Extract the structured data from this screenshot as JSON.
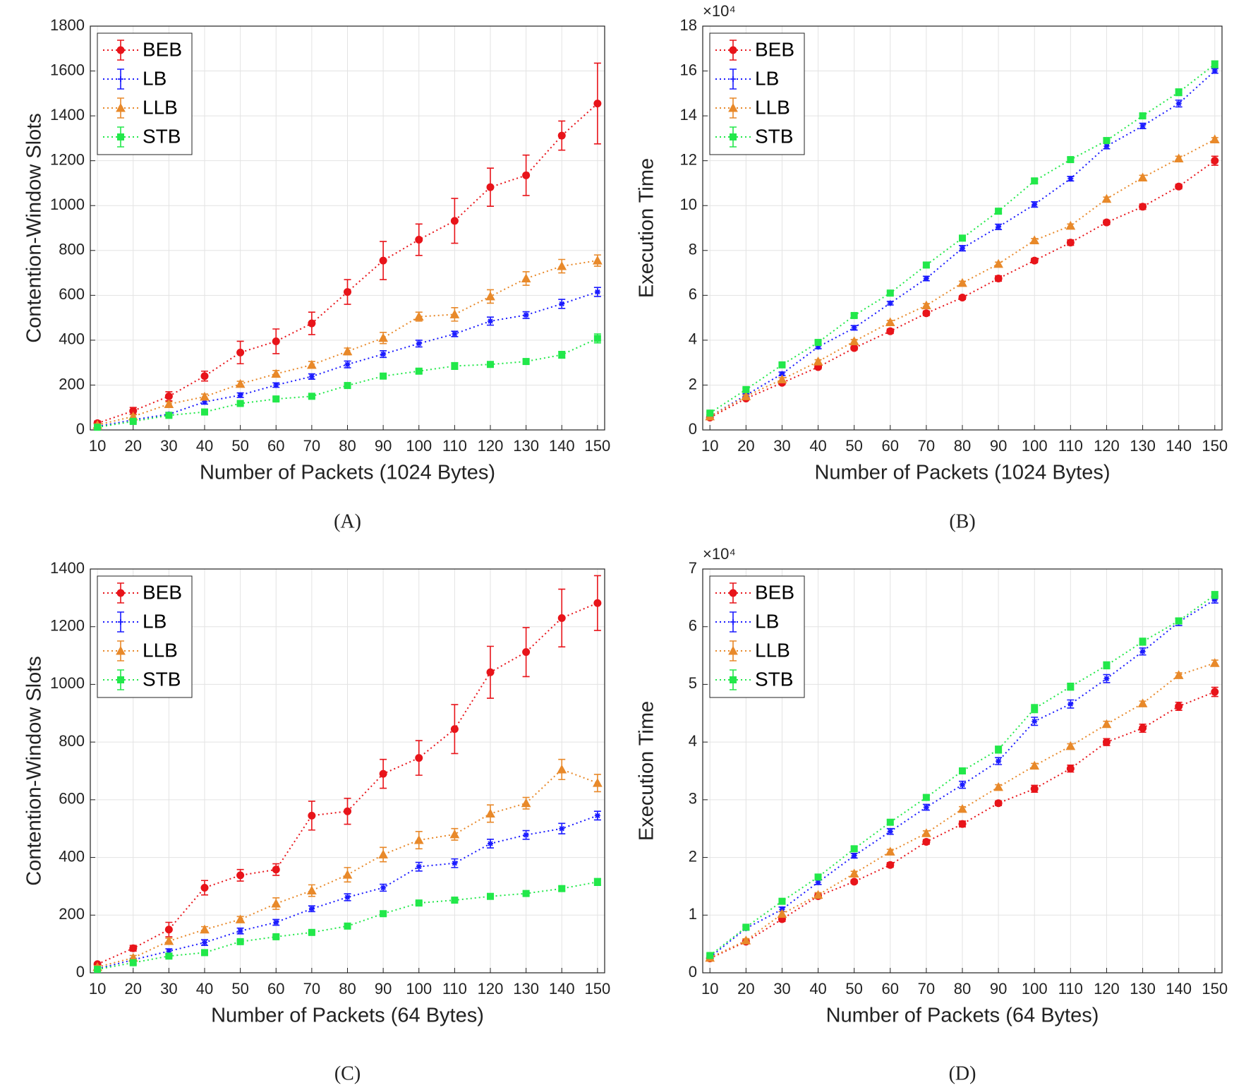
{
  "chart_data": [
    {
      "type": "line",
      "caption": "(A)",
      "xlabel": "Number of Packets (1024 Bytes)",
      "ylabel": "Contention-Window Slots",
      "x": [
        10,
        20,
        30,
        40,
        50,
        60,
        70,
        80,
        90,
        100,
        110,
        120,
        130,
        140,
        150
      ],
      "xlim": [
        8,
        152
      ],
      "xticks": [
        10,
        20,
        30,
        40,
        50,
        60,
        70,
        80,
        90,
        100,
        110,
        120,
        130,
        140,
        150
      ],
      "ylim": [
        0,
        1800
      ],
      "yticks": [
        0,
        200,
        400,
        600,
        800,
        1000,
        1200,
        1400,
        1600,
        1800
      ],
      "grid": true,
      "legend": "upper left",
      "series": [
        {
          "name": "BEB",
          "color": "#e8141a",
          "marker": "circle",
          "values": [
            30,
            85,
            150,
            240,
            345,
            395,
            475,
            615,
            755,
            848,
            932,
            1082,
            1135,
            1312,
            1455
          ],
          "errors": [
            10,
            15,
            20,
            22,
            50,
            55,
            50,
            55,
            85,
            70,
            100,
            85,
            90,
            65,
            180
          ]
        },
        {
          "name": "LB",
          "color": "#1a1aff",
          "marker": "star",
          "values": [
            15,
            45,
            70,
            125,
            155,
            200,
            238,
            292,
            338,
            385,
            428,
            485,
            512,
            562,
            615
          ],
          "errors": [
            5,
            5,
            8,
            10,
            10,
            10,
            12,
            15,
            15,
            15,
            12,
            18,
            15,
            20,
            20
          ]
        },
        {
          "name": "LLB",
          "color": "#e8892a",
          "marker": "triangle",
          "values": [
            22,
            60,
            115,
            148,
            205,
            250,
            290,
            350,
            410,
            505,
            515,
            595,
            675,
            730,
            755
          ],
          "errors": [
            5,
            8,
            10,
            12,
            12,
            15,
            15,
            15,
            25,
            20,
            30,
            30,
            30,
            30,
            25
          ]
        },
        {
          "name": "STB",
          "color": "#22e84a",
          "marker": "square",
          "values": [
            12,
            38,
            65,
            80,
            118,
            138,
            150,
            198,
            240,
            262,
            285,
            292,
            305,
            335,
            408
          ],
          "errors": [
            5,
            5,
            5,
            5,
            8,
            8,
            8,
            8,
            8,
            10,
            15,
            10,
            10,
            15,
            20
          ]
        }
      ]
    },
    {
      "type": "line",
      "caption": "(B)",
      "xlabel": "Number of Packets (1024 Bytes)",
      "ylabel": "Execution Time",
      "y_multiplier": "×10⁴",
      "x": [
        10,
        20,
        30,
        40,
        50,
        60,
        70,
        80,
        90,
        100,
        110,
        120,
        130,
        140,
        150
      ],
      "xlim": [
        8,
        152
      ],
      "xticks": [
        10,
        20,
        30,
        40,
        50,
        60,
        70,
        80,
        90,
        100,
        110,
        120,
        130,
        140,
        150
      ],
      "ylim": [
        0,
        180000
      ],
      "yticks": [
        {
          "value": 0,
          "label": "0"
        },
        {
          "value": 20000,
          "label": "2"
        },
        {
          "value": 40000,
          "label": "4"
        },
        {
          "value": 60000,
          "label": "6"
        },
        {
          "value": 80000,
          "label": "8"
        },
        {
          "value": 100000,
          "label": "10"
        },
        {
          "value": 120000,
          "label": "12"
        },
        {
          "value": 140000,
          "label": "14"
        },
        {
          "value": 160000,
          "label": "16"
        },
        {
          "value": 180000,
          "label": "18"
        }
      ],
      "grid": true,
      "legend": "upper left",
      "series": [
        {
          "name": "BEB",
          "color": "#e8141a",
          "marker": "circle",
          "values": [
            5500,
            14000,
            21000,
            28000,
            36500,
            44000,
            52000,
            59000,
            67500,
            75500,
            83500,
            92500,
            99500,
            108500,
            120000
          ],
          "errors": [
            500,
            500,
            800,
            800,
            800,
            1000,
            1000,
            800,
            1200,
            1000,
            1200,
            1000,
            1200,
            1000,
            2000
          ]
        },
        {
          "name": "LB",
          "color": "#1a1aff",
          "marker": "star",
          "values": [
            6000,
            15500,
            25000,
            37000,
            45500,
            56500,
            67500,
            81000,
            90500,
            100500,
            112000,
            126500,
            135500,
            145500,
            160000
          ],
          "errors": [
            500,
            600,
            800,
            800,
            1000,
            800,
            1000,
            1200,
            1200,
            1200,
            1000,
            1200,
            1200,
            1500,
            1000
          ]
        },
        {
          "name": "LLB",
          "color": "#e8892a",
          "marker": "triangle",
          "values": [
            6000,
            15000,
            22500,
            30500,
            39500,
            48000,
            55500,
            65500,
            74000,
            84500,
            91000,
            103000,
            112500,
            121000,
            129500
          ],
          "errors": [
            500,
            600,
            800,
            800,
            800,
            800,
            800,
            800,
            800,
            800,
            800,
            800,
            1000,
            1000,
            800
          ]
        },
        {
          "name": "STB",
          "color": "#22e84a",
          "marker": "square",
          "values": [
            7500,
            18000,
            29000,
            39000,
            51000,
            61000,
            73500,
            85500,
            97500,
            111000,
            120500,
            129000,
            140000,
            150500,
            163000
          ],
          "errors": [
            500,
            600,
            800,
            800,
            800,
            800,
            1000,
            1200,
            1000,
            1000,
            1000,
            1000,
            1000,
            1500,
            1500
          ]
        }
      ]
    },
    {
      "type": "line",
      "caption": "(C)",
      "xlabel": "Number of Packets (64 Bytes)",
      "ylabel": "Contention-Window Slots",
      "x": [
        10,
        20,
        30,
        40,
        50,
        60,
        70,
        80,
        90,
        100,
        110,
        120,
        130,
        140,
        150
      ],
      "xlim": [
        8,
        152
      ],
      "xticks": [
        10,
        20,
        30,
        40,
        50,
        60,
        70,
        80,
        90,
        100,
        110,
        120,
        130,
        140,
        150
      ],
      "ylim": [
        0,
        1400
      ],
      "yticks": [
        0,
        200,
        400,
        600,
        800,
        1000,
        1200,
        1400
      ],
      "grid": true,
      "legend": "upper left",
      "series": [
        {
          "name": "BEB",
          "color": "#e8141a",
          "marker": "circle",
          "values": [
            30,
            85,
            150,
            295,
            338,
            358,
            545,
            560,
            690,
            745,
            845,
            1042,
            1112,
            1230,
            1282
          ],
          "errors": [
            5,
            10,
            25,
            25,
            20,
            20,
            50,
            45,
            50,
            60,
            85,
            90,
            85,
            100,
            95
          ]
        },
        {
          "name": "LB",
          "color": "#1a1aff",
          "marker": "star",
          "values": [
            14,
            45,
            75,
            105,
            145,
            175,
            222,
            262,
            295,
            368,
            380,
            448,
            478,
            500,
            545
          ],
          "errors": [
            5,
            5,
            8,
            10,
            10,
            10,
            10,
            12,
            12,
            15,
            15,
            15,
            15,
            18,
            15
          ]
        },
        {
          "name": "LLB",
          "color": "#e8892a",
          "marker": "triangle",
          "values": [
            20,
            52,
            110,
            150,
            185,
            240,
            285,
            340,
            410,
            460,
            480,
            552,
            588,
            705,
            658
          ],
          "errors": [
            5,
            8,
            10,
            10,
            10,
            20,
            20,
            25,
            25,
            30,
            20,
            30,
            20,
            35,
            30
          ]
        },
        {
          "name": "STB",
          "color": "#22e84a",
          "marker": "square",
          "values": [
            12,
            35,
            58,
            70,
            108,
            125,
            140,
            162,
            205,
            242,
            252,
            265,
            275,
            292,
            315
          ],
          "errors": [
            5,
            5,
            5,
            5,
            5,
            5,
            5,
            8,
            8,
            5,
            5,
            5,
            5,
            8,
            12
          ]
        }
      ]
    },
    {
      "type": "line",
      "caption": "(D)",
      "xlabel": "Number of Packets (64 Bytes)",
      "ylabel": "Execution Time",
      "y_multiplier": "×10⁴",
      "x": [
        10,
        20,
        30,
        40,
        50,
        60,
        70,
        80,
        90,
        100,
        110,
        120,
        130,
        140,
        150
      ],
      "xlim": [
        8,
        152
      ],
      "xticks": [
        10,
        20,
        30,
        40,
        50,
        60,
        70,
        80,
        90,
        100,
        110,
        120,
        130,
        140,
        150
      ],
      "ylim": [
        0,
        70000
      ],
      "yticks": [
        {
          "value": 0,
          "label": "0"
        },
        {
          "value": 10000,
          "label": "1"
        },
        {
          "value": 20000,
          "label": "2"
        },
        {
          "value": 30000,
          "label": "3"
        },
        {
          "value": 40000,
          "label": "4"
        },
        {
          "value": 50000,
          "label": "5"
        },
        {
          "value": 60000,
          "label": "6"
        },
        {
          "value": 70000,
          "label": "7"
        }
      ],
      "grid": true,
      "legend": "upper left",
      "series": [
        {
          "name": "BEB",
          "color": "#e8141a",
          "marker": "circle",
          "values": [
            2500,
            5400,
            9300,
            13300,
            15800,
            18700,
            22700,
            25800,
            29400,
            31900,
            35400,
            40000,
            42400,
            46200,
            48700
          ],
          "errors": [
            300,
            300,
            400,
            400,
            300,
            400,
            400,
            500,
            400,
            600,
            600,
            600,
            700,
            700,
            800
          ]
        },
        {
          "name": "LB",
          "color": "#1a1aff",
          "marker": "star",
          "values": [
            2700,
            7700,
            11000,
            15700,
            20300,
            24500,
            28700,
            32600,
            36700,
            43600,
            46600,
            51000,
            55700,
            60800,
            64700
          ],
          "errors": [
            300,
            300,
            400,
            400,
            400,
            500,
            500,
            600,
            600,
            700,
            700,
            700,
            600,
            600,
            600
          ]
        },
        {
          "name": "LLB",
          "color": "#e8892a",
          "marker": "triangle",
          "values": [
            2600,
            5600,
            10200,
            13500,
            17200,
            21000,
            24200,
            28400,
            32200,
            35900,
            39300,
            43100,
            46700,
            51600,
            53700
          ],
          "errors": [
            300,
            300,
            400,
            400,
            400,
            400,
            400,
            400,
            400,
            400,
            400,
            500,
            400,
            400,
            500
          ]
        },
        {
          "name": "STB",
          "color": "#22e84a",
          "marker": "square",
          "values": [
            3000,
            7900,
            12400,
            16600,
            21500,
            26100,
            30400,
            35000,
            38700,
            45800,
            49600,
            53300,
            57400,
            61000,
            65500
          ],
          "errors": [
            300,
            300,
            400,
            400,
            400,
            400,
            400,
            500,
            600,
            700,
            600,
            600,
            600,
            500,
            600
          ]
        }
      ]
    }
  ]
}
